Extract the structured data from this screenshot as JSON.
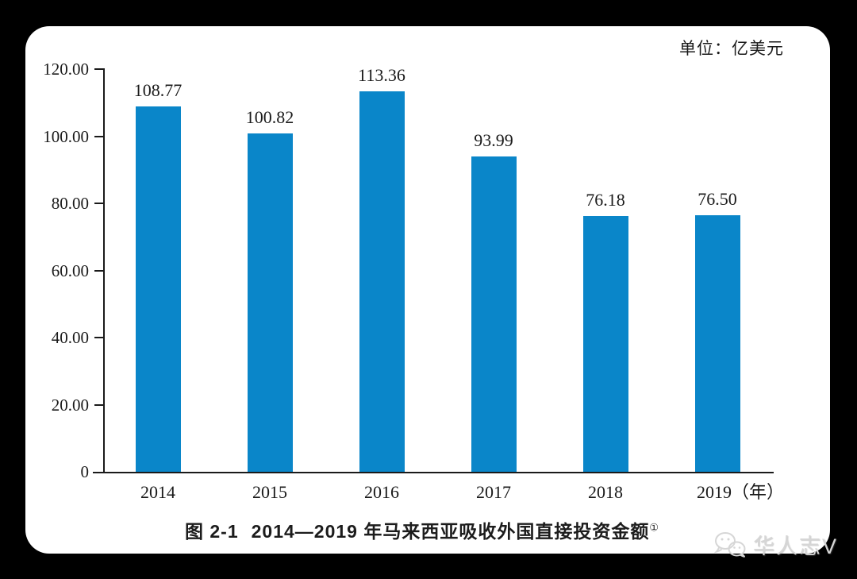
{
  "unit_label": "单位：亿美元",
  "caption": {
    "figure_no": "图 2-1",
    "title": "2014—2019 年马来西亚吸收外国直接投资金额",
    "footnote_mark": "①"
  },
  "watermark": {
    "icon": "wechat-icon",
    "text": "华人志V"
  },
  "chart_data": {
    "type": "bar",
    "title": "图 2-1 2014—2019 年马来西亚吸收外国直接投资金额①",
    "unit": "亿美元",
    "categories": [
      "2014",
      "2015",
      "2016",
      "2017",
      "2018",
      "2019"
    ],
    "values": [
      108.77,
      100.82,
      113.36,
      93.99,
      76.18,
      76.5
    ],
    "value_labels": [
      "108.77",
      "100.82",
      "113.36",
      "93.99",
      "76.18",
      "76.50"
    ],
    "x_axis_suffix": "（年）",
    "xlabel": "年",
    "ylabel": "",
    "y_ticks": [
      "120.00",
      "100.00",
      "80.00",
      "60.00",
      "40.00",
      "20.00",
      "0"
    ],
    "ylim": [
      0,
      120
    ],
    "grid": false,
    "legend": "none",
    "bar_color": "#0a86c9",
    "axis_color": "#1a1a1a"
  }
}
